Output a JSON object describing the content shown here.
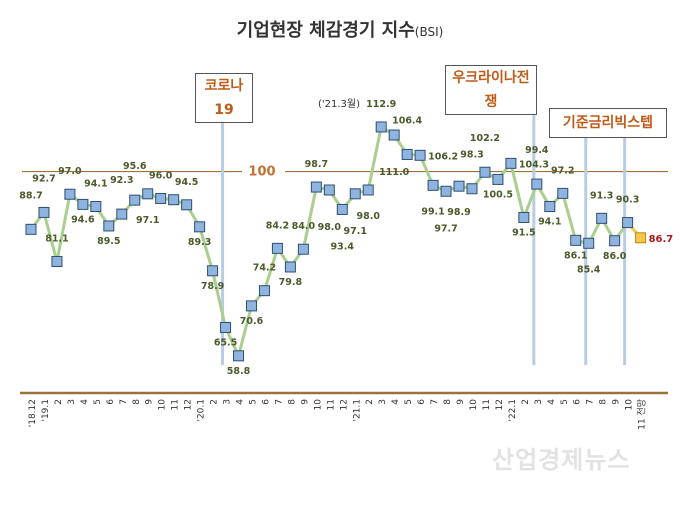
{
  "chart_data": {
    "type": "line",
    "title": "기업현장 체감경기 지수",
    "title_suffix": "(BSI)",
    "categories": [
      "'18.12",
      "'19.1",
      "2",
      "3",
      "4",
      "5",
      "6",
      "7",
      "8",
      "9",
      "10",
      "11",
      "12",
      "'20.1",
      "2",
      "3",
      "4",
      "5",
      "6",
      "7",
      "8",
      "9",
      "10",
      "11",
      "12",
      "'21.1",
      "2",
      "3",
      "4",
      "5",
      "6",
      "7",
      "8",
      "9",
      "10",
      "11",
      "12",
      "'22.1",
      "2",
      "3",
      "4",
      "5",
      "6",
      "7",
      "8",
      "9",
      "10",
      "11 전망"
    ],
    "values": [
      88.7,
      92.7,
      81.1,
      97.0,
      94.6,
      94.1,
      89.5,
      92.3,
      95.6,
      97.1,
      96.0,
      95.7,
      94.5,
      89.3,
      78.9,
      65.5,
      58.8,
      70.6,
      74.2,
      84.2,
      79.8,
      84.0,
      98.7,
      98.0,
      93.4,
      97.1,
      98.0,
      112.9,
      111.0,
      106.4,
      106.2,
      99.1,
      97.7,
      98.9,
      98.3,
      102.2,
      100.5,
      104.3,
      91.5,
      99.4,
      94.1,
      97.2,
      86.1,
      85.4,
      91.3,
      86.0,
      90.3,
      86.7
    ],
    "labels": [
      "88.7",
      "92.7",
      "81.1",
      "97.0",
      "94.6",
      "94.1",
      "89.5",
      "92.3",
      "95.6",
      "97.1",
      "96.0",
      "",
      "94.5",
      "89.3",
      "78.9",
      "65.5",
      "58.8",
      "70.6",
      "74.2",
      "84.2",
      "79.8",
      "84.0",
      "98.7",
      "98.0",
      "93.4",
      "97.1",
      "98.0",
      "112.9",
      "111.0",
      "106.4",
      "106.2",
      "99.1",
      "97.7",
      "98.9",
      "98.3",
      "102.2",
      "100.5",
      "104.3",
      "91.5",
      "99.4",
      "94.1",
      "97.2",
      "86.1",
      "85.4",
      "91.3",
      "86.0",
      "90.3",
      "86.7"
    ],
    "forecast_index": 47,
    "reference_line": {
      "value": 100,
      "label": "100"
    },
    "peak_note": "('21.3월)",
    "events": [
      {
        "label": "코로나19",
        "index": 15
      },
      {
        "label": "우크라이나전쟁",
        "index": 39
      },
      {
        "label": "기준금리빅스텝",
        "index": 43
      },
      {
        "label": "기준금리빅스텝",
        "index": 46
      }
    ],
    "colors": {
      "line": "#a9cf8e",
      "marker": "#8fb4e0",
      "marker_border": "#2f4f6f",
      "forecast": "#f6c744",
      "forecast_label": "#b01818",
      "axis": "#a0703a",
      "event_line": "#b8cde4",
      "label": "#4a5a2a"
    }
  },
  "boxes": {
    "covid": "코로나19",
    "ukraine": "우크라이나전쟁",
    "rate": "기준금리빅스텝"
  },
  "watermark": "산업경제뉴스"
}
